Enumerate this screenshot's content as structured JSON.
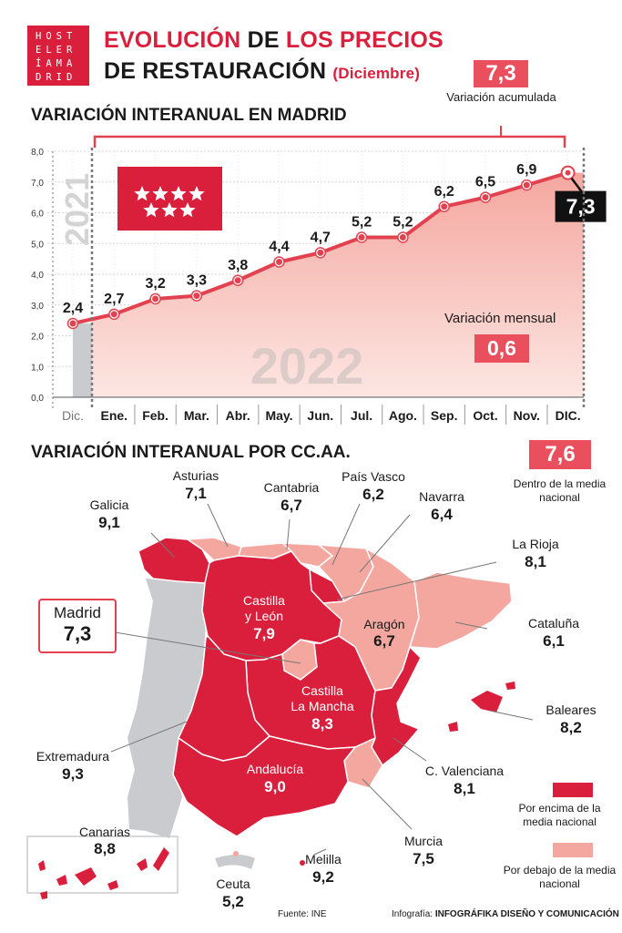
{
  "logo": {
    "rows": [
      "HOST",
      "ELER",
      "ÍAMA",
      "DRID"
    ]
  },
  "header": {
    "title_part1": "EVOLUCIÓN",
    "title_part2": "DE",
    "title_part3": "LOS PRECIOS",
    "title_line2": "DE RESTAURACIÓN",
    "title_suffix": "(Diciembre)"
  },
  "accumulated": {
    "value": "7,3",
    "label": "Variación acumulada"
  },
  "section1": {
    "title": "VARIACIÓN INTERANUAL EN MADRID"
  },
  "section2": {
    "title": "VARIACIÓN INTERANUAL POR CC.AA."
  },
  "chart_data": {
    "type": "area",
    "title": "VARIACIÓN INTERANUAL EN MADRID",
    "year_prev": "2021",
    "year": "2022",
    "categories": [
      "Dic.",
      "Ene.",
      "Feb.",
      "Mar.",
      "Abr.",
      "May.",
      "Jun.",
      "Jul.",
      "Ago.",
      "Sep.",
      "Oct.",
      "Nov.",
      "DIC."
    ],
    "values": [
      2.4,
      2.7,
      3.2,
      3.3,
      3.8,
      4.4,
      4.7,
      5.2,
      5.2,
      6.2,
      6.5,
      6.9,
      7.3
    ],
    "value_labels": [
      "2,4",
      "2,7",
      "3,2",
      "3,3",
      "3,8",
      "4,4",
      "4,7",
      "5,2",
      "5,2",
      "6,2",
      "6,5",
      "6,9",
      "7,3"
    ],
    "y_ticks": [
      "0,0",
      "1,0",
      "2,0",
      "3,0",
      "4,0",
      "5,0",
      "6,0",
      "7,0",
      "8,0"
    ],
    "ylim": [
      0,
      8
    ],
    "grid": true,
    "legend": "none",
    "colors": {
      "line": "#e2424f",
      "area": "#f4a79f",
      "prev_area": "#c9cbce",
      "last_box": "#111111"
    }
  },
  "monthly": {
    "label": "Variación mensual",
    "value": "0,6"
  },
  "national": {
    "value": "7,6",
    "label": "Dentro de la media nacional"
  },
  "regions": [
    {
      "name": "Galicia",
      "value": "9,1",
      "above": true
    },
    {
      "name": "Asturias",
      "value": "7,1",
      "above": false
    },
    {
      "name": "Cantabria",
      "value": "6,7",
      "above": false
    },
    {
      "name": "País Vasco",
      "value": "6,2",
      "above": false
    },
    {
      "name": "Navarra",
      "value": "6,4",
      "above": false
    },
    {
      "name": "La Rioja",
      "value": "8,1",
      "above": true
    },
    {
      "name": "Castilla y León",
      "value": "7,9",
      "above": true
    },
    {
      "name": "Aragón",
      "value": "6,7",
      "above": false
    },
    {
      "name": "Cataluña",
      "value": "6,1",
      "above": false
    },
    {
      "name": "Madrid",
      "value": "7,3",
      "above": false
    },
    {
      "name": "Castilla La Mancha",
      "value": "8,3",
      "above": true
    },
    {
      "name": "Baleares",
      "value": "8,2",
      "above": true
    },
    {
      "name": "Extremadura",
      "value": "9,3",
      "above": true
    },
    {
      "name": "Andalucía",
      "value": "9,0",
      "above": true
    },
    {
      "name": "C. Valenciana",
      "value": "8,1",
      "above": true
    },
    {
      "name": "Murcia",
      "value": "7,5",
      "above": false
    },
    {
      "name": "Canarias",
      "value": "8,8",
      "above": true
    },
    {
      "name": "Ceuta",
      "value": "5,2",
      "above": false
    },
    {
      "name": "Melilla",
      "value": "9,2",
      "above": true
    }
  ],
  "map_labels": {
    "castilla_leon_1": "Castilla",
    "castilla_leon_2": "y León",
    "clm_1": "Castilla",
    "clm_2": "La Mancha"
  },
  "legend": {
    "above": "Por encima de la media nacional",
    "below": "Por debajo de la media nacional",
    "above_color": "#d91f3c",
    "below_color": "#f4a79f"
  },
  "footer": {
    "source": "Fuente: INE",
    "credit_prefix": "Infografía:",
    "credit": "INFOGRÁFIKA DISEÑO Y COMUNICACIÓN"
  }
}
